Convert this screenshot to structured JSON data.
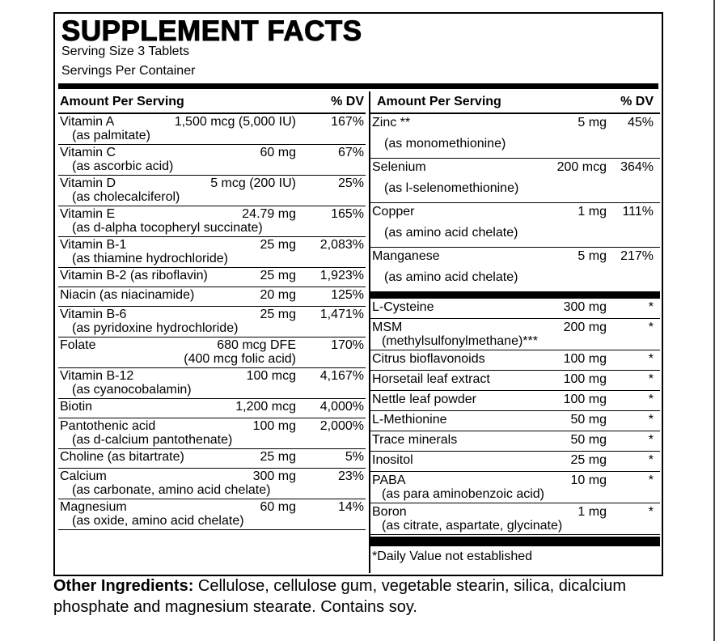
{
  "title": "SUPPLEMENT FACTS",
  "serving_size": "Serving Size 3 Tablets",
  "servings_per_container": "Servings Per Container",
  "left": {
    "header": {
      "amount": "Amount Per  Serving",
      "dv": "% DV"
    },
    "rows": [
      {
        "name": "Vitamin A",
        "amount": "1,500 mcg (5,000 IU)",
        "dv": "167%",
        "note": "(as palmitate)"
      },
      {
        "name": "Vitamin C",
        "amount": "60 mg",
        "dv": "67%",
        "note": "(as ascorbic acid)"
      },
      {
        "name": "Vitamin D",
        "amount": "5 mcg (200 IU)",
        "dv": "25%",
        "note": "(as cholecalciferol)"
      },
      {
        "name": "Vitamin E",
        "amount": "24.79 mg",
        "dv": "165%",
        "note": "(as d-alpha tocopheryl succinate)"
      },
      {
        "name": "Vitamin B-1",
        "amount": "25 mg",
        "dv": "2,083%",
        "note": "(as thiamine hydrochloride)"
      },
      {
        "name": "Vitamin B-2 (as riboflavin)",
        "amount": "25 mg",
        "dv": "1,923%"
      },
      {
        "name": "Niacin (as niacinamide)",
        "amount": "20 mg",
        "dv": "125%"
      },
      {
        "name": "Vitamin B-6",
        "amount": "25 mg",
        "dv": "1,471%",
        "note": "(as pyridoxine hydrochloride)"
      },
      {
        "name": "Folate",
        "amount": "680 mcg DFE",
        "dv": "170%",
        "note": "(400 mcg folic acid)"
      },
      {
        "name": "Vitamin B-12",
        "amount": "100 mcg",
        "dv": "4,167%",
        "note": "(as cyanocobalamin)"
      },
      {
        "name": "Biotin",
        "amount": "1,200 mcg",
        "dv": "4,000%"
      },
      {
        "name": "Pantothenic acid",
        "amount": "100 mg",
        "dv": "2,000%",
        "note": "(as d-calcium pantothenate)"
      },
      {
        "name": "Choline (as bitartrate)",
        "amount": "25 mg",
        "dv": "5%"
      },
      {
        "name": "Calcium",
        "amount": "300 mg",
        "dv": "23%",
        "note": "(as carbonate, amino acid chelate)"
      },
      {
        "name": "Magnesium",
        "amount": "60 mg",
        "dv": "14%",
        "note": "(as oxide, amino acid chelate)"
      }
    ]
  },
  "right": {
    "header": {
      "amount": "Amount Per  Serving",
      "dv": "% DV"
    },
    "minerals": [
      {
        "name": "Zinc **",
        "amount": "5 mg",
        "dv": "45%",
        "note": "(as monomethionine)"
      },
      {
        "name": "Selenium",
        "amount": "200 mcg",
        "dv": "364%",
        "note": "(as l-selenomethionine)"
      },
      {
        "name": "Copper",
        "amount": "1 mg",
        "dv": "111%",
        "note": "(as amino acid chelate)"
      },
      {
        "name": "Manganese",
        "amount": "5 mg",
        "dv": "217%",
        "note": "(as amino acid chelate)"
      }
    ],
    "others": [
      {
        "name": "L-Cysteine",
        "amount": "300 mg",
        "dv": "*"
      },
      {
        "name": "MSM",
        "amount": "200 mg",
        "dv": "*",
        "note": "(methylsulfonylmethane)***"
      },
      {
        "name": "Citrus bioflavonoids",
        "amount": "100 mg",
        "dv": "*"
      },
      {
        "name": "Horsetail leaf extract",
        "amount": "100 mg",
        "dv": "*"
      },
      {
        "name": "Nettle leaf powder",
        "amount": "100 mg",
        "dv": "*"
      },
      {
        "name": "L-Methionine",
        "amount": "50 mg",
        "dv": "*"
      },
      {
        "name": "Trace minerals",
        "amount": "50 mg",
        "dv": "*"
      },
      {
        "name": "Inositol",
        "amount": "25 mg",
        "dv": "*"
      },
      {
        "name": "PABA",
        "amount": "10 mg",
        "dv": "*",
        "note": "(as para aminobenzoic acid)"
      },
      {
        "name": "Boron",
        "amount": "1 mg",
        "dv": "*",
        "note": "(as citrate, aspartate, glycinate)"
      }
    ],
    "footnote": "*Daily Value not established"
  },
  "other_ingredients": {
    "label": "Other Ingredients:",
    "text": "Cellulose, cellulose gum, vegetable stearin, silica, dicalcium phosphate and magnesium stearate. Contains soy."
  }
}
